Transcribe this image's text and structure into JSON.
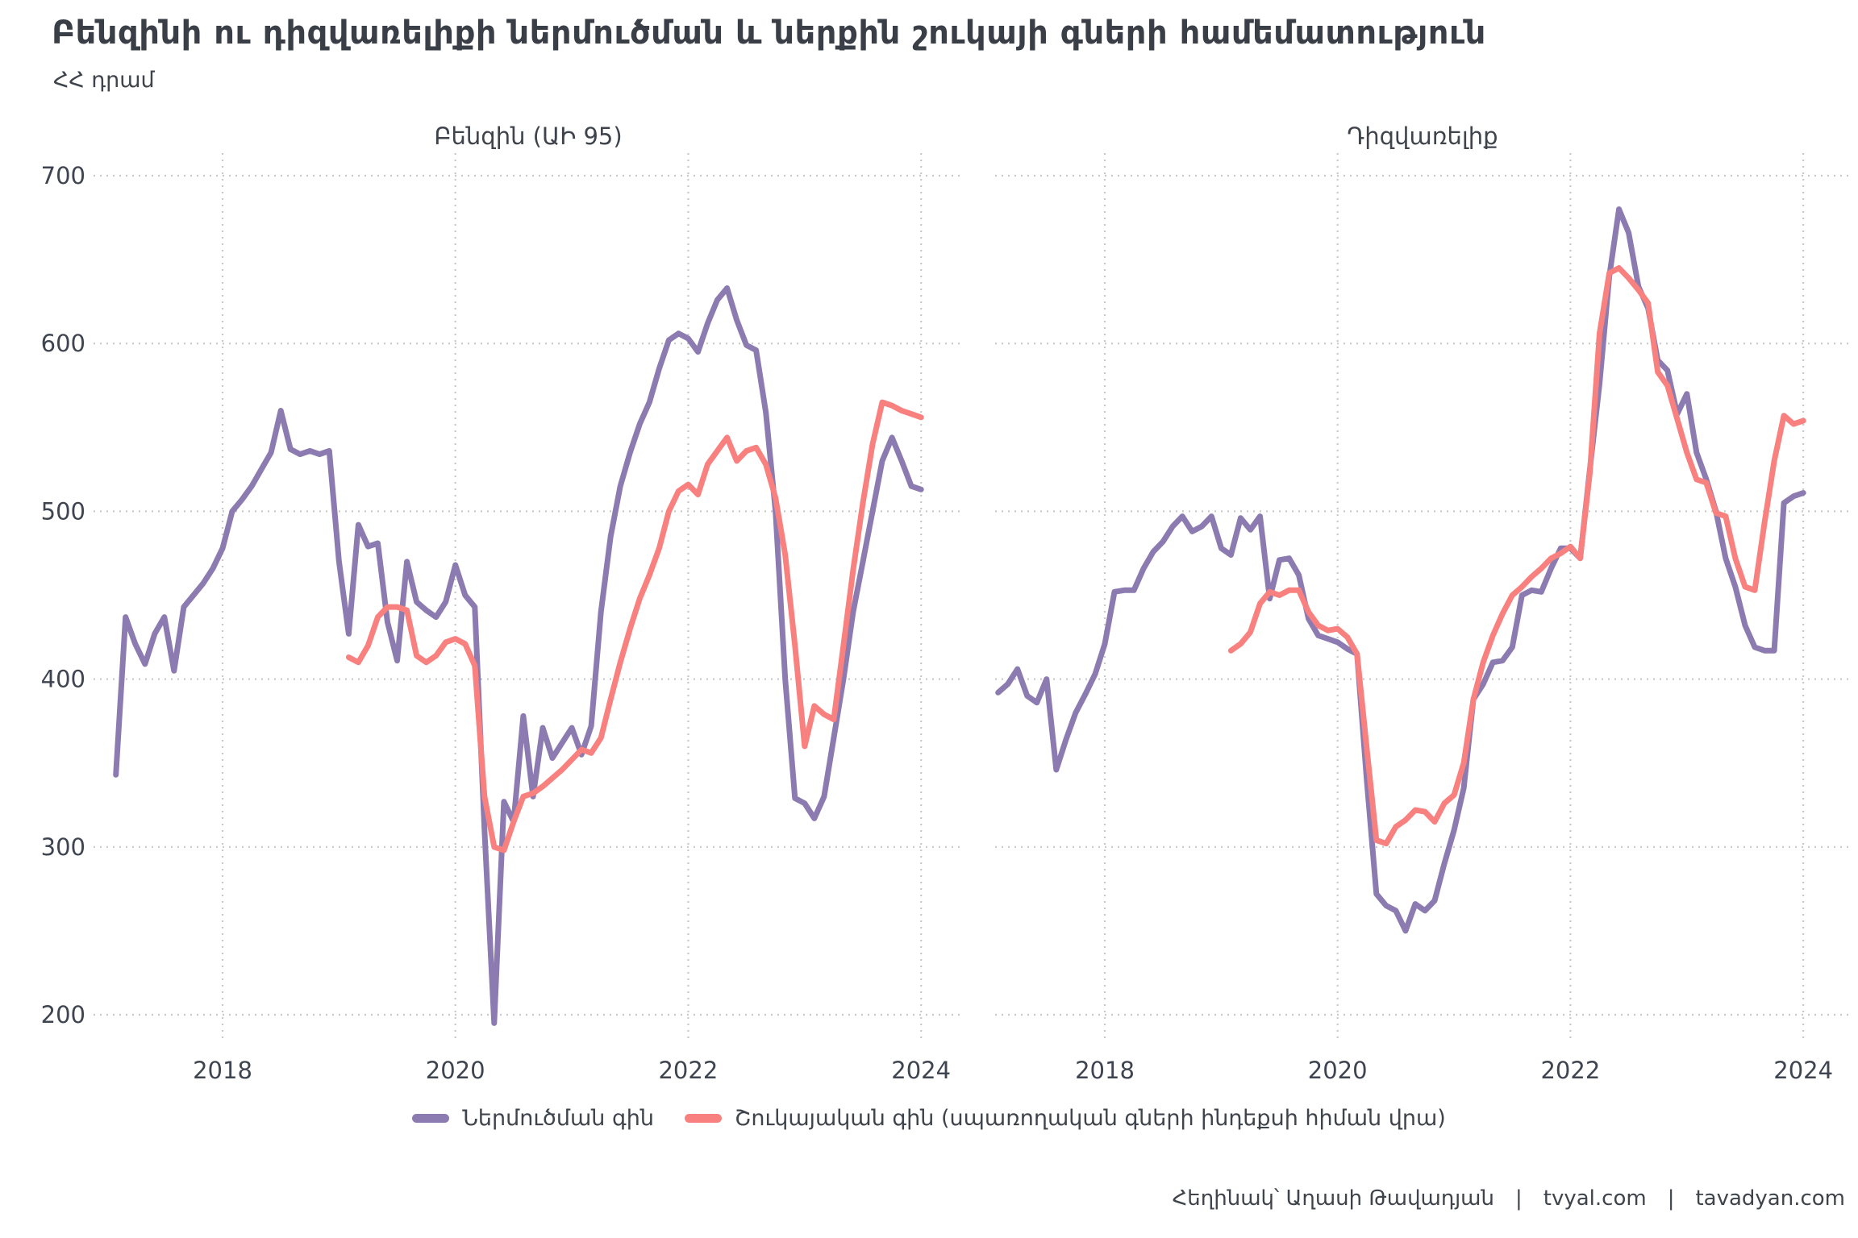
{
  "header": {
    "title": "Բենզինի ու դիզվառելիքի ներմուծման և ներքին շուկայի գների համեմատություն",
    "subtitle": "ՀՀ դրամ"
  },
  "chart_data": [
    {
      "type": "line",
      "title": "Բենզին (ԱԻ 95)",
      "ylabel": "ՀՀ դրամ",
      "xlabel": "",
      "grid": "dotted",
      "y_ticks": [
        700,
        600,
        500,
        400,
        300,
        200
      ],
      "x_ticks": [
        {
          "label": "2018",
          "year": 2018
        },
        {
          "label": "2020",
          "year": 2020
        },
        {
          "label": "2022",
          "year": 2022
        },
        {
          "label": "2024",
          "year": 2024
        }
      ],
      "series": [
        {
          "name": "Ներմուծման գին",
          "color": "#8C7BB0",
          "start_year": 2017,
          "start_month": 2,
          "values": [
            343,
            437,
            421,
            409,
            427,
            437,
            405,
            443,
            450,
            457,
            466,
            478,
            500,
            507,
            515,
            525,
            535,
            560,
            537,
            534,
            536,
            534,
            536,
            470,
            427,
            492,
            479,
            481,
            434,
            411,
            470,
            446,
            441,
            437,
            446,
            468,
            450,
            443,
            310,
            195,
            327,
            315,
            378,
            330,
            371,
            353,
            362,
            371,
            355,
            372,
            440,
            485,
            515,
            535,
            552,
            565,
            585,
            602,
            606,
            603,
            595,
            612,
            626,
            633,
            614,
            599,
            596,
            559,
            500,
            400,
            329,
            326,
            317,
            330,
            365,
            400,
            440,
            470,
            500,
            530,
            544,
            530,
            515,
            513
          ]
        },
        {
          "name": "Շուկայական գին (սպառողական գների ինդեքսի հիման վրա)",
          "color": "#F8807E",
          "start_year": 2019,
          "start_month": 2,
          "values": [
            413,
            410,
            420,
            437,
            443,
            443,
            441,
            414,
            410,
            414,
            422,
            424,
            421,
            408,
            330,
            300,
            298,
            315,
            330,
            332,
            336,
            341,
            346,
            352,
            358,
            356,
            365,
            388,
            410,
            430,
            448,
            462,
            478,
            500,
            512,
            516,
            510,
            528,
            536,
            544,
            530,
            536,
            538,
            528,
            508,
            474,
            420,
            360,
            384,
            379,
            376,
            420,
            465,
            505,
            540,
            565,
            563,
            560,
            558,
            556
          ]
        }
      ]
    },
    {
      "type": "line",
      "title": "Դիզվառելիք",
      "ylabel": "ՀՀ դրամ",
      "xlabel": "",
      "grid": "dotted",
      "y_ticks": [
        700,
        600,
        500,
        400,
        300,
        200
      ],
      "x_ticks": [
        {
          "label": "2018",
          "year": 2018
        },
        {
          "label": "2020",
          "year": 2020
        },
        {
          "label": "2022",
          "year": 2022
        },
        {
          "label": "2024",
          "year": 2024
        }
      ],
      "series": [
        {
          "name": "Ներմուծման գին",
          "color": "#8C7BB0",
          "start_year": 2017,
          "start_month": 2,
          "values": [
            392,
            397,
            406,
            390,
            386,
            400,
            346,
            364,
            380,
            391,
            403,
            421,
            452,
            453,
            453,
            466,
            476,
            482,
            491,
            497,
            488,
            491,
            497,
            478,
            474,
            496,
            489,
            497,
            448,
            471,
            472,
            462,
            436,
            426,
            424,
            422,
            418,
            415,
            340,
            272,
            265,
            262,
            250,
            266,
            262,
            268,
            290,
            310,
            335,
            388,
            397,
            410,
            411,
            419,
            450,
            453,
            452,
            466,
            478,
            478,
            472,
            525,
            576,
            640,
            680,
            666,
            634,
            621,
            590,
            584,
            558,
            570,
            535,
            519,
            500,
            472,
            455,
            432,
            419,
            417,
            417,
            505,
            509,
            511
          ]
        },
        {
          "name": "Շուկայական գին (սպառողական գների ինդեքսի հիման վրա)",
          "color": "#F8807E",
          "start_year": 2019,
          "start_month": 2,
          "values": [
            417,
            421,
            428,
            445,
            452,
            450,
            453,
            453,
            440,
            432,
            429,
            430,
            425,
            415,
            359,
            304,
            302,
            312,
            316,
            322,
            321,
            315,
            326,
            331,
            350,
            388,
            410,
            426,
            439,
            450,
            455,
            461,
            466,
            472,
            475,
            479,
            472,
            523,
            606,
            642,
            645,
            639,
            632,
            624,
            583,
            575,
            555,
            535,
            519,
            517,
            499,
            497,
            472,
            455,
            453,
            493,
            530,
            557,
            552,
            554
          ]
        }
      ]
    }
  ],
  "legend": {
    "items": [
      {
        "label": "Ներմուծման գին",
        "color": "#8C7BB0"
      },
      {
        "label": "Շուկայական գին (սպառողական գների ինդեքսի հիման վրա)",
        "color": "#F8807E"
      }
    ]
  },
  "footer": {
    "author": "Հեղինակ՝ Աղասի Թավադյան",
    "separator": "|",
    "site1": "tvyal.com",
    "site2": "tavadyan.com"
  }
}
